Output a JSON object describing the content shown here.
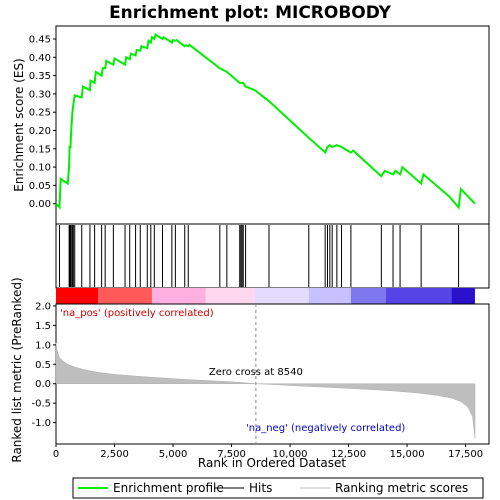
{
  "chart_data": {
    "type": "line",
    "title": "Enrichment plot: MICROBODY",
    "top_panel": {
      "ylabel": "Enrichment score (ES)",
      "ylim": [
        -0.05,
        0.48
      ],
      "yticks": [
        0.0,
        0.05,
        0.1,
        0.15,
        0.2,
        0.25,
        0.3,
        0.35,
        0.4,
        0.45
      ],
      "ytick_labels": [
        "0.00",
        "0.05",
        "0.10",
        "0.15",
        "0.20",
        "0.25",
        "0.30",
        "0.35",
        "0.40",
        "0.45"
      ],
      "series": [
        {
          "name": "Enrichment profile",
          "color": "#00ee00",
          "x": [
            0,
            150,
            200,
            500,
            560,
            580,
            620,
            650,
            700,
            740,
            800,
            1100,
            1150,
            1450,
            1480,
            1650,
            1700,
            1950,
            2000,
            2100,
            2150,
            2450,
            2500,
            2950,
            3000,
            3150,
            3200,
            3400,
            3450,
            3600,
            3650,
            3900,
            3950,
            4050,
            4100,
            4200,
            4250,
            4550,
            4600,
            4950,
            5000,
            5100,
            5150,
            5500,
            5550,
            5650,
            5700,
            7000,
            7300,
            7850,
            7900,
            8000,
            8100,
            8500,
            9100,
            10800,
            11500,
            11600,
            11700,
            11800,
            12000,
            12200,
            12600,
            12700,
            13900,
            14050,
            14400,
            14500,
            14700,
            14800,
            15600,
            15700,
            16800,
            17200,
            17300,
            17900
          ],
          "y": [
            0.0,
            -0.01,
            0.068,
            0.055,
            0.1,
            0.155,
            0.155,
            0.2,
            0.25,
            0.27,
            0.296,
            0.29,
            0.32,
            0.31,
            0.336,
            0.33,
            0.36,
            0.35,
            0.37,
            0.37,
            0.39,
            0.38,
            0.397,
            0.38,
            0.4,
            0.395,
            0.41,
            0.405,
            0.42,
            0.418,
            0.43,
            0.425,
            0.445,
            0.44,
            0.455,
            0.45,
            0.462,
            0.45,
            0.455,
            0.44,
            0.447,
            0.445,
            0.447,
            0.43,
            0.433,
            0.43,
            0.434,
            0.37,
            0.36,
            0.33,
            0.33,
            0.33,
            0.32,
            0.31,
            0.28,
            0.18,
            0.14,
            0.155,
            0.16,
            0.155,
            0.16,
            0.155,
            0.14,
            0.145,
            0.075,
            0.09,
            0.08,
            0.09,
            0.08,
            0.1,
            0.055,
            0.08,
            0.02,
            -0.01,
            0.04,
            0.0
          ]
        }
      ]
    },
    "hits": {
      "name": "Hits",
      "positions": [
        150,
        560,
        580,
        620,
        650,
        700,
        740,
        800,
        1100,
        1450,
        1650,
        1950,
        2100,
        2450,
        2950,
        3150,
        3400,
        3600,
        3900,
        4050,
        4200,
        4550,
        4950,
        5100,
        5500,
        5650,
        7000,
        7300,
        7850,
        7900,
        7950,
        8000,
        8100,
        9100,
        10800,
        11500,
        11600,
        11700,
        11800,
        12000,
        12200,
        12600,
        13900,
        14400,
        14700,
        15600,
        17200
      ]
    },
    "bottom_panel": {
      "ylabel": "Ranked list metric (PreRanked)",
      "ylim": [
        -1.55,
        2.05
      ],
      "yticks": [
        -1.0,
        -0.5,
        0.0,
        0.5,
        1.0,
        1.5,
        2.0
      ],
      "ytick_labels": [
        "-1.0",
        "-0.5",
        "0.0",
        "0.5",
        "1.0",
        "1.5",
        "2.0"
      ],
      "series": [
        {
          "name": "Ranking metric scores",
          "color": "#bebebe",
          "x": [
            0,
            30,
            80,
            150,
            300,
            500,
            800,
            1200,
            1800,
            2500,
            3500,
            4500,
            5500,
            6500,
            7500,
            8540,
            9500,
            10500,
            11500,
            12500,
            13500,
            14500,
            15500,
            16300,
            16900,
            17300,
            17600,
            17800,
            17900
          ],
          "y": [
            1.05,
            0.9,
            0.78,
            0.68,
            0.58,
            0.5,
            0.43,
            0.36,
            0.29,
            0.24,
            0.19,
            0.15,
            0.11,
            0.08,
            0.05,
            0.0,
            -0.03,
            -0.06,
            -0.09,
            -0.12,
            -0.15,
            -0.19,
            -0.24,
            -0.3,
            -0.37,
            -0.46,
            -0.6,
            -0.85,
            -1.4
          ]
        }
      ],
      "annotations": {
        "pos_label": "'na_pos' (positively correlated)",
        "neg_label": "'na_neg' (negatively correlated)",
        "zero_cross": "Zero cross at 8540",
        "zero_cross_x": 8540
      }
    },
    "xlabel": "Rank in Ordered Dataset",
    "xlim": [
      0,
      18500
    ],
    "xticks": [
      0,
      2500,
      5000,
      7500,
      10000,
      12500,
      15000,
      17500
    ],
    "xtick_labels": [
      "0",
      "2,500",
      "5,000",
      "7,500",
      "10,000",
      "12,500",
      "15,000",
      "17,500"
    ],
    "color_bar": {
      "stops": [
        "#ff0000",
        "#ff6060",
        "#ffaadd",
        "#ddccff",
        "#8888ee",
        "#5544dd",
        "#2200bb"
      ],
      "boundaries": [
        0,
        1800,
        4100,
        6400,
        8500,
        10800,
        12600,
        14100,
        16900,
        17900
      ]
    },
    "legend": [
      {
        "label": "Enrichment profile",
        "color": "#00ee00"
      },
      {
        "label": "Hits",
        "color": "#000000"
      },
      {
        "label": "Ranking metric scores",
        "color": "#bebebe"
      }
    ],
    "colors": {
      "pos_label": "#cc0000",
      "neg_label": "#0000cc",
      "zero_line": "#888888"
    }
  }
}
